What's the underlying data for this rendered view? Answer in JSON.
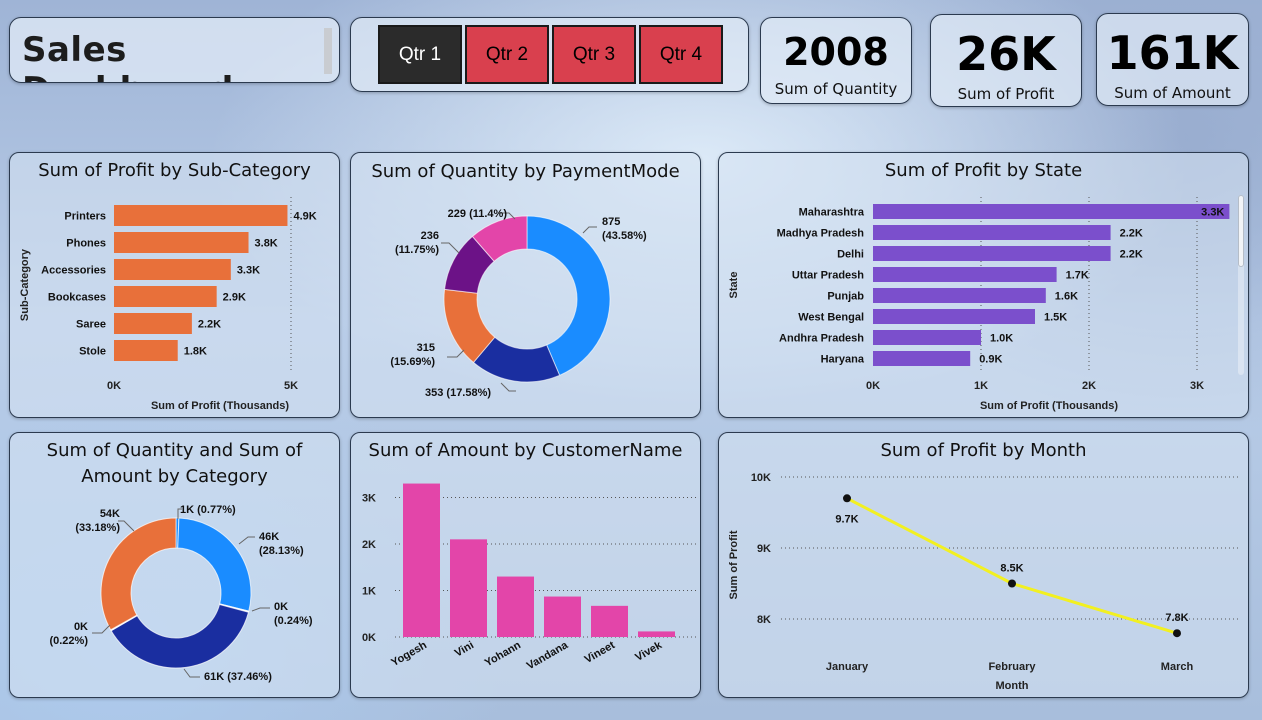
{
  "header": {
    "title": "Sales Dashboard",
    "quarters": [
      {
        "label": "Qtr 1",
        "selected": true
      },
      {
        "label": "Qtr 2",
        "selected": false
      },
      {
        "label": "Qtr 3",
        "selected": false
      },
      {
        "label": "Qtr 4",
        "selected": false
      }
    ],
    "kpis": [
      {
        "value": "2008",
        "label": "Sum of Quantity"
      },
      {
        "value": "26K",
        "label": "Sum of Profit"
      },
      {
        "value": "161K",
        "label": "Sum of Amount"
      }
    ]
  },
  "colors": {
    "orange": "#E8703A",
    "purple": "#7B4FCC",
    "pink": "#E345A9",
    "blue": "#1A8CFF",
    "navy": "#1A2EA0",
    "darkpurple": "#6C1287",
    "yellow": "#F2F021",
    "selected_btn": "#2B2B2B",
    "btn": "#D9404E"
  },
  "chart_data": [
    {
      "id": "subcat",
      "type": "bar",
      "orientation": "horizontal",
      "title": "Sum of Profit by Sub-Category",
      "xlabel": "Sum of Profit (Thousands)",
      "ylabel": "Sub-Category",
      "categories": [
        "Printers",
        "Phones",
        "Accessories",
        "Bookcases",
        "Saree",
        "Stole"
      ],
      "values": [
        4.9,
        3.8,
        3.3,
        2.9,
        2.2,
        1.8
      ],
      "data_labels": [
        "4.9K",
        "3.8K",
        "3.3K",
        "2.9K",
        "2.2K",
        "1.8K"
      ],
      "xlim": [
        0,
        5
      ],
      "x_ticks": [
        "0K",
        "5K"
      ]
    },
    {
      "id": "payment",
      "type": "pie",
      "style": "donut",
      "title": "Sum of Quantity by PaymentMode",
      "values": [
        875,
        353,
        315,
        236,
        229
      ],
      "percents": [
        "43.58%",
        "17.58%",
        "15.69%",
        "11.75%",
        "11.4%"
      ],
      "labels": [
        "875 (43.58%)",
        "353 (17.58%)",
        "315 (15.69%)",
        "236 (11.75%)",
        "229 (11.4%)"
      ]
    },
    {
      "id": "state",
      "type": "bar",
      "orientation": "horizontal",
      "title": "Sum of Profit by State",
      "xlabel": "Sum of Profit (Thousands)",
      "ylabel": "State",
      "categories": [
        "Maharashtra",
        "Madhya Pradesh",
        "Delhi",
        "Uttar Pradesh",
        "Punjab",
        "West Bengal",
        "Andhra Pradesh",
        "Haryana"
      ],
      "values": [
        3.3,
        2.2,
        2.2,
        1.7,
        1.6,
        1.5,
        1.0,
        0.9
      ],
      "data_labels": [
        "3.3K",
        "2.2K",
        "2.2K",
        "1.7K",
        "1.6K",
        "1.5K",
        "1.0K",
        "0.9K"
      ],
      "xlim": [
        0,
        3.3
      ],
      "x_ticks": [
        "0K",
        "1K",
        "2K",
        "3K"
      ]
    },
    {
      "id": "category",
      "type": "pie",
      "style": "donut",
      "title_lines": [
        "Sum of Quantity and Sum of",
        "Amount by Category"
      ],
      "values": [
        1,
        46,
        0.4,
        61,
        0.35,
        54
      ],
      "percents": [
        "0.77%",
        "28.13%",
        "0.24%",
        "37.46%",
        "0.22%",
        "33.18%"
      ],
      "labels": [
        [
          "1K (0.77%)"
        ],
        [
          "46K",
          "(28.13%)"
        ],
        [
          "0K",
          "(0.24%)"
        ],
        [
          "61K (37.46%)"
        ],
        [
          "0K",
          "(0.22%)"
        ],
        [
          "54K",
          "(33.18%)"
        ]
      ]
    },
    {
      "id": "customer",
      "type": "bar",
      "orientation": "vertical",
      "title": "Sum of Amount by CustomerName",
      "categories": [
        "Yogesh",
        "Vini",
        "Yohann",
        "Vandana",
        "Vineet",
        "Vivek"
      ],
      "values": [
        3.3,
        2.1,
        1.3,
        0.87,
        0.67,
        0.12
      ],
      "ylim": [
        0,
        3.4
      ],
      "y_ticks": [
        "0K",
        "1K",
        "2K",
        "3K"
      ]
    },
    {
      "id": "month",
      "type": "line",
      "title": "Sum of Profit by Month",
      "xlabel": "Month",
      "ylabel": "Sum of Profit",
      "categories": [
        "January",
        "February",
        "March"
      ],
      "values": [
        9.7,
        8.5,
        7.8
      ],
      "data_labels": [
        "9.7K",
        "8.5K",
        "7.8K"
      ],
      "ylim": [
        7.8,
        10
      ],
      "y_ticks": [
        "8K",
        "9K",
        "10K"
      ]
    }
  ]
}
